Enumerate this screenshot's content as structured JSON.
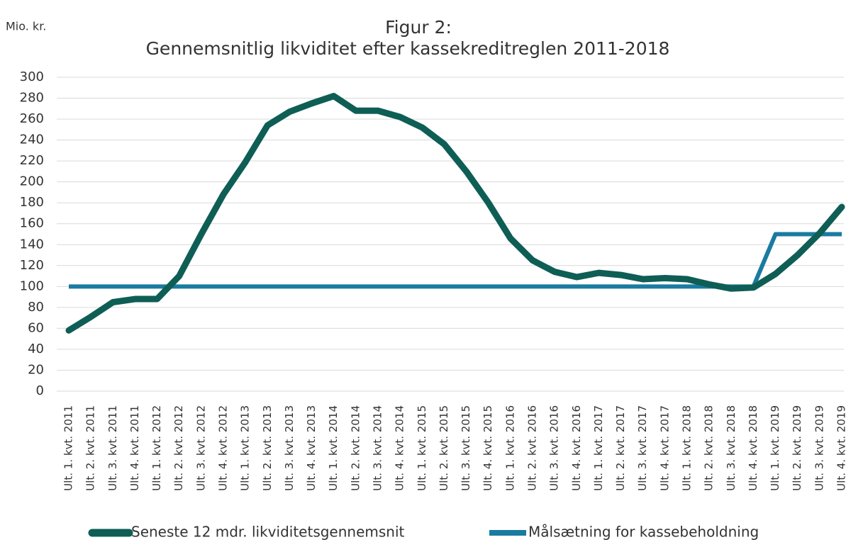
{
  "chart_data": {
    "type": "line",
    "title": "Figur 2:",
    "subtitle": "Gennemsnitlig likviditet efter kassekreditreglen 2011-2018",
    "ylabel": "Mio. kr.",
    "categories": [
      "Ult. 1. kvt. 2011",
      "Ult. 2. kvt. 2011",
      "Ult. 3. kvt. 2011",
      "Ult. 4. kvt. 2011",
      "Ult. 1. kvt. 2012",
      "Ult. 2. kvt. 2012",
      "Ult. 3. kvt. 2012",
      "Ult. 4. kvt. 2012",
      "Ult. 1. kvt. 2013",
      "Ult. 2. kvt. 2013",
      "Ult. 3. kvt. 2013",
      "Ult. 4. kvt. 2013",
      "Ult. 1. kvt. 2014",
      "Ult. 2. kvt. 2014",
      "Ult. 3. kvt. 2014",
      "Ult. 4. kvt. 2014",
      "Ult. 1. kvt. 2015",
      "Ult. 2. kvt. 2015",
      "Ult. 3. kvt. 2015",
      "Ult. 4. kvt. 2015",
      "Ult. 1. kvt. 2016",
      "Ult. 2. kvt. 2016",
      "Ult. 3. kvt. 2016",
      "Ult. 4. kvt. 2016",
      "Ult. 1. kvt. 2017",
      "Ult. 2. kvt. 2017",
      "Ult. 3. kvt. 2017",
      "Ult. 4. kvt. 2017",
      "Ult. 1. kvt. 2018",
      "Ult. 2. kvt. 2018",
      "Ult. 3. kvt. 2018",
      "Ult. 4. kvt. 2018",
      "Ult. 1. kvt. 2019",
      "Ult. 2. kvt. 2019",
      "Ult. 3. kvt. 2019",
      "Ult. 4. kvt. 2019"
    ],
    "series": [
      {
        "name": "Seneste 12 mdr. likviditetsgennemsnit",
        "color": "#0e5e55",
        "values": [
          58,
          71,
          85,
          88,
          88,
          110,
          150,
          188,
          219,
          254,
          267,
          275,
          282,
          268,
          268,
          262,
          252,
          236,
          210,
          180,
          146,
          125,
          114,
          109,
          113,
          111,
          107,
          108,
          107,
          102,
          98,
          99,
          112,
          130,
          151,
          176
        ]
      },
      {
        "name": "Målsætning for kassebeholdning",
        "color": "#1a7ba0",
        "values": [
          100,
          100,
          100,
          100,
          100,
          100,
          100,
          100,
          100,
          100,
          100,
          100,
          100,
          100,
          100,
          100,
          100,
          100,
          100,
          100,
          100,
          100,
          100,
          100,
          100,
          100,
          100,
          100,
          100,
          100,
          100,
          100,
          150,
          150,
          150,
          150
        ]
      }
    ],
    "ylim": [
      0,
      300
    ],
    "yticks": [
      0,
      20,
      40,
      60,
      80,
      100,
      120,
      140,
      160,
      180,
      200,
      220,
      240,
      260,
      280,
      300
    ],
    "grid": true
  }
}
